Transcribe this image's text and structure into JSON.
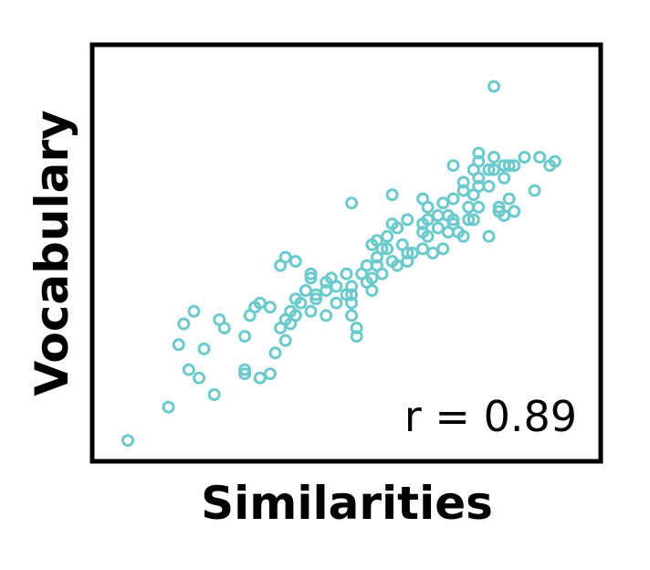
{
  "chart_data": {
    "type": "scatter",
    "title": "",
    "xlabel": "Similarities",
    "ylabel": "Vocabulary",
    "annotation": "r = 0.89",
    "xlim": [
      0,
      100
    ],
    "ylim": [
      0,
      100
    ],
    "grid": false,
    "ticks": false,
    "marker_color": "#6cc9cc",
    "points": [
      [
        7,
        5
      ],
      [
        15,
        13
      ],
      [
        24,
        16
      ],
      [
        19,
        22
      ],
      [
        21,
        20
      ],
      [
        22,
        27
      ],
      [
        26,
        32
      ],
      [
        17,
        28
      ],
      [
        18,
        33
      ],
      [
        20,
        36
      ],
      [
        25,
        34
      ],
      [
        30,
        30
      ],
      [
        30,
        22
      ],
      [
        30,
        21
      ],
      [
        33,
        20
      ],
      [
        35,
        21
      ],
      [
        36,
        26
      ],
      [
        38,
        29
      ],
      [
        37,
        32
      ],
      [
        38,
        34
      ],
      [
        39,
        33
      ],
      [
        40,
        35
      ],
      [
        39,
        36
      ],
      [
        31,
        35
      ],
      [
        32,
        37
      ],
      [
        33,
        38
      ],
      [
        35,
        37
      ],
      [
        40,
        39
      ],
      [
        41,
        38
      ],
      [
        43,
        36
      ],
      [
        44,
        39
      ],
      [
        46,
        41
      ],
      [
        48,
        38
      ],
      [
        51,
        38
      ],
      [
        51,
        40
      ],
      [
        51,
        42
      ],
      [
        47,
        44
      ],
      [
        43,
        44
      ],
      [
        42,
        41
      ],
      [
        43,
        45
      ],
      [
        37,
        47
      ],
      [
        38,
        49
      ],
      [
        40,
        48
      ],
      [
        46,
        43
      ],
      [
        54,
        43
      ],
      [
        55,
        41
      ],
      [
        50,
        45
      ],
      [
        53,
        45
      ],
      [
        54,
        47
      ],
      [
        56,
        47
      ],
      [
        57,
        45
      ],
      [
        59,
        48
      ],
      [
        56,
        49
      ],
      [
        58,
        51
      ],
      [
        60,
        47
      ],
      [
        55,
        52
      ],
      [
        56,
        53
      ],
      [
        57,
        51
      ],
      [
        58,
        54
      ],
      [
        59,
        57
      ],
      [
        61,
        52
      ],
      [
        62,
        50
      ],
      [
        63,
        50
      ],
      [
        65,
        51
      ],
      [
        67,
        50
      ],
      [
        69,
        51
      ],
      [
        60,
        56
      ],
      [
        62,
        58
      ],
      [
        65,
        55
      ],
      [
        66,
        54
      ],
      [
        68,
        59
      ],
      [
        70,
        55
      ],
      [
        71,
        57
      ],
      [
        72,
        55
      ],
      [
        74,
        58
      ],
      [
        75,
        58
      ],
      [
        73,
        54
      ],
      [
        78,
        54
      ],
      [
        81,
        59
      ],
      [
        80,
        60
      ],
      [
        83,
        60
      ],
      [
        65,
        63
      ],
      [
        66,
        61
      ],
      [
        69,
        62
      ],
      [
        71,
        63
      ],
      [
        71,
        58
      ],
      [
        74,
        61
      ],
      [
        76,
        61
      ],
      [
        73,
        65
      ],
      [
        75,
        64
      ],
      [
        76,
        66
      ],
      [
        76,
        68
      ],
      [
        78,
        66
      ],
      [
        82,
        63
      ],
      [
        75,
        70
      ],
      [
        78,
        70
      ],
      [
        79,
        70
      ],
      [
        81,
        71
      ],
      [
        83,
        71
      ],
      [
        71,
        71
      ],
      [
        76,
        72
      ],
      [
        79,
        73
      ],
      [
        80,
        61
      ],
      [
        82,
        71
      ],
      [
        85,
        73
      ],
      [
        88,
        73
      ],
      [
        90,
        71
      ],
      [
        91,
        72
      ],
      [
        87,
        65
      ],
      [
        79,
        90
      ],
      [
        59,
        64
      ],
      [
        51,
        62
      ],
      [
        44,
        40
      ],
      [
        50,
        40
      ],
      [
        51,
        35
      ],
      [
        55,
        44
      ],
      [
        48,
        42
      ],
      [
        52,
        32
      ],
      [
        52,
        30
      ],
      [
        46,
        35
      ],
      [
        76,
        74
      ],
      [
        81,
        68
      ],
      [
        73,
        67
      ],
      [
        65,
        57
      ],
      [
        62,
        48
      ],
      [
        70,
        59
      ],
      [
        68,
        56
      ],
      [
        66,
        58
      ]
    ]
  }
}
